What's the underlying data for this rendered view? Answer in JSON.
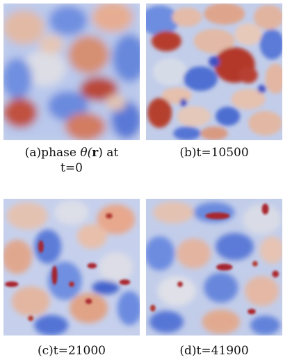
{
  "figure": {
    "panels": [
      {
        "id": "a",
        "caption_prefix": "(a)phase ",
        "caption_theta": "θ(",
        "caption_r": "r",
        "caption_close": ")",
        "caption_rest": " at",
        "caption_line2": "t=0"
      },
      {
        "id": "b",
        "caption": "(b)t=10500"
      },
      {
        "id": "c",
        "caption": "(c)t=21000"
      },
      {
        "id": "d",
        "caption": "(d)t=41900"
      }
    ],
    "colormap": {
      "low": "#3b4cc0",
      "mid": "#dcdcdc",
      "high": "#b40426"
    }
  }
}
